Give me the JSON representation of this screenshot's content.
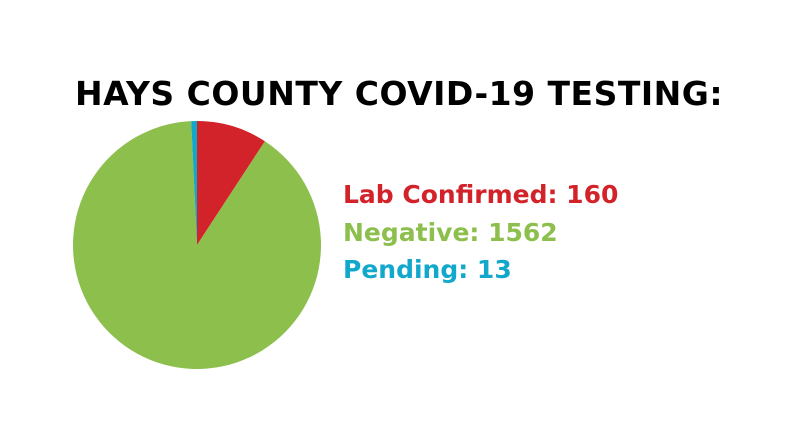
{
  "chart_data": {
    "type": "pie",
    "title": "HAYS COUNTY COVID-19 TESTING:",
    "slices": [
      {
        "label": "Lab Confirmed",
        "value": 160,
        "color": "#d2232a",
        "text": "Lab Confirmed: 160"
      },
      {
        "label": "Negative",
        "value": 1562,
        "color": "#8dbf4d",
        "text": "Negative: 1562"
      },
      {
        "label": "Pending",
        "value": 13,
        "color": "#12a8cc",
        "text": "Pending: 13"
      }
    ],
    "start_angle": "top, clockwise",
    "legend_placement": "right"
  }
}
